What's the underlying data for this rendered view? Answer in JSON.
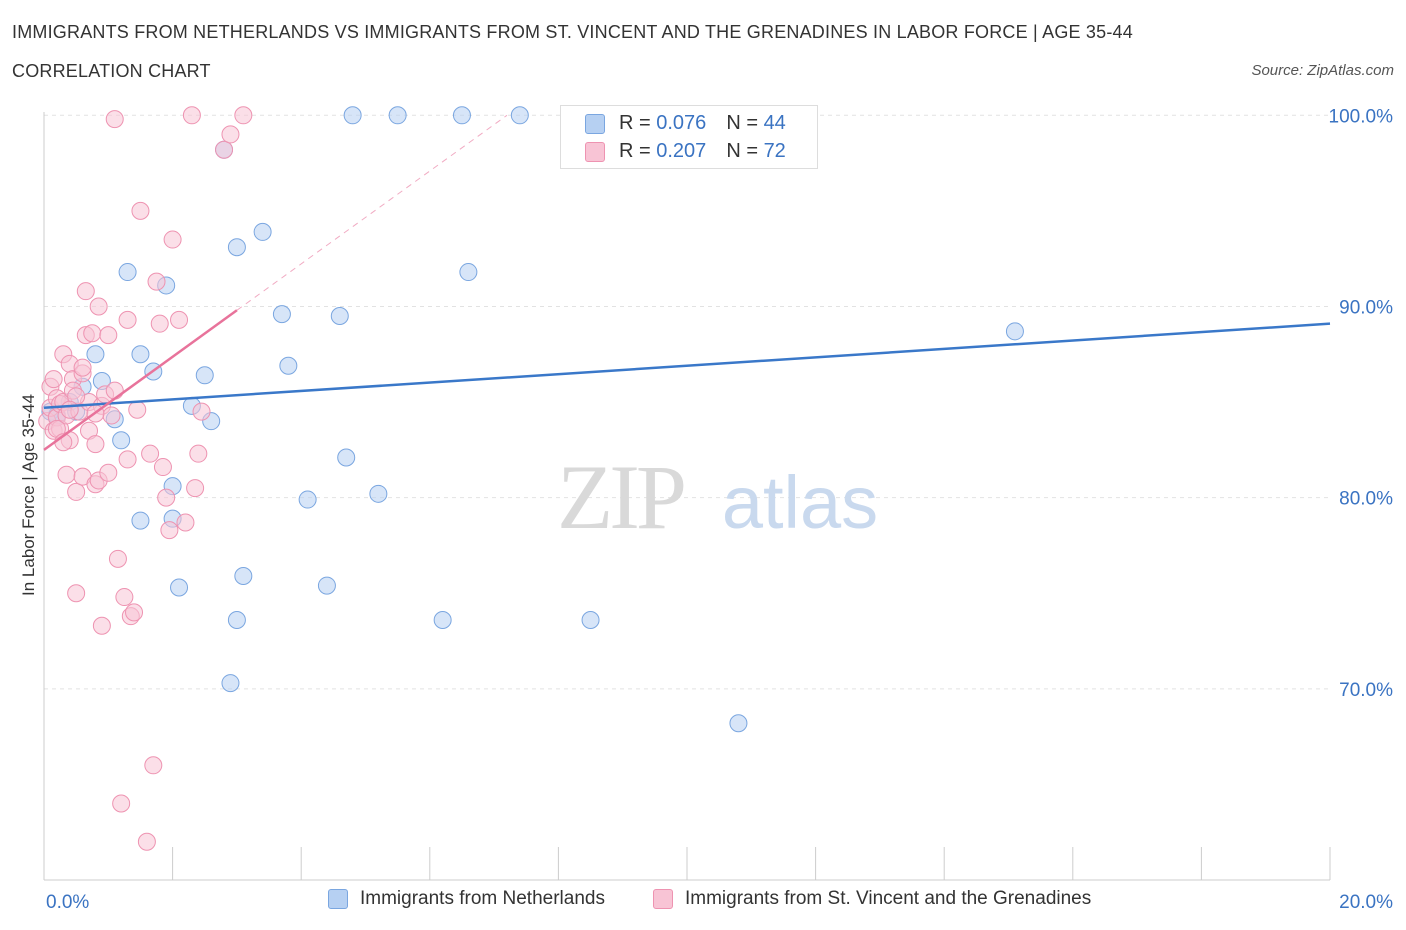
{
  "header": {
    "title": "IMMIGRANTS FROM NETHERLANDS VS IMMIGRANTS FROM ST. VINCENT AND THE GRENADINES IN LABOR FORCE | AGE 35-44",
    "subtitle": "CORRELATION CHART",
    "source": "Source: ZipAtlas.com"
  },
  "watermark": {
    "zip": "ZIP",
    "atlas": "atlas"
  },
  "stat_legend": {
    "rows": [
      {
        "r_label": "R =",
        "r_value": "0.076",
        "n_label": "N =",
        "n_value": "44",
        "color": "#b6d0f2",
        "border": "#7aa6e0"
      },
      {
        "r_label": "R =",
        "r_value": "0.207",
        "n_label": "N =",
        "n_value": "72",
        "color": "#f8c4d5",
        "border": "#ee93b1"
      }
    ]
  },
  "chart_data": {
    "type": "scatter",
    "title": "IMMIGRANTS FROM NETHERLANDS VS IMMIGRANTS FROM ST. VINCENT AND THE GRENADINES IN LABOR FORCE | AGE 35-44",
    "xlabel": "",
    "ylabel": "In Labor Force | Age 35-44",
    "xlim": [
      0,
      20
    ],
    "ylim": [
      60,
      100.8
    ],
    "x_tick_labels": [
      {
        "value": 0,
        "label": "0.0%"
      },
      {
        "value": 20,
        "label": "20.0%"
      }
    ],
    "y_tick_labels": [
      {
        "value": 100,
        "label": "100.0%"
      },
      {
        "value": 90,
        "label": "90.0%"
      },
      {
        "value": 80,
        "label": "80.0%"
      },
      {
        "value": 70,
        "label": "70.0%"
      }
    ],
    "grid": true,
    "legend_position": "bottom",
    "series": [
      {
        "name": "Immigrants from Netherlands",
        "color": "#b6d0f2",
        "edge": "#7aa6e0",
        "trend_color": "#3a78c9",
        "trend": {
          "x0": 0.0,
          "y0": 84.7,
          "x1": 20.0,
          "y1": 89.1
        },
        "points": [
          [
            0.1,
            84.5
          ],
          [
            0.2,
            84.2
          ],
          [
            0.4,
            85.0
          ],
          [
            0.5,
            84.5
          ],
          [
            0.6,
            85.8
          ],
          [
            0.8,
            87.5
          ],
          [
            0.9,
            86.1
          ],
          [
            1.1,
            84.1
          ],
          [
            1.2,
            83.0
          ],
          [
            1.3,
            91.8
          ],
          [
            1.5,
            87.5
          ],
          [
            1.5,
            78.8
          ],
          [
            1.7,
            86.6
          ],
          [
            1.9,
            91.1
          ],
          [
            2.0,
            80.6
          ],
          [
            2.0,
            78.9
          ],
          [
            2.1,
            75.3
          ],
          [
            2.3,
            84.8
          ],
          [
            2.5,
            86.4
          ],
          [
            2.6,
            84.0
          ],
          [
            2.8,
            98.2
          ],
          [
            2.9,
            70.3
          ],
          [
            3.0,
            93.1
          ],
          [
            3.0,
            73.6
          ],
          [
            3.1,
            75.9
          ],
          [
            3.4,
            93.9
          ],
          [
            3.7,
            89.6
          ],
          [
            3.8,
            86.9
          ],
          [
            4.1,
            79.9
          ],
          [
            4.4,
            75.4
          ],
          [
            4.6,
            89.5
          ],
          [
            4.7,
            82.1
          ],
          [
            4.8,
            100.0
          ],
          [
            5.2,
            80.2
          ],
          [
            5.5,
            100.0
          ],
          [
            6.2,
            73.6
          ],
          [
            6.5,
            100.0
          ],
          [
            6.6,
            91.8
          ],
          [
            7.4,
            100.0
          ],
          [
            8.5,
            73.6
          ],
          [
            8.9,
            100.0
          ],
          [
            10.8,
            68.2
          ],
          [
            15.1,
            88.7
          ],
          [
            0.2,
            84.3
          ]
        ]
      },
      {
        "name": "Immigrants from St. Vincent and the Grenadines",
        "color": "#f8c4d5",
        "edge": "#ee93b1",
        "trend_color": "#e8739b",
        "trend": {
          "x0": 0.0,
          "y0": 82.5,
          "x1": 3.0,
          "y1": 89.8
        },
        "trend_dashed": {
          "x0": 3.0,
          "y0": 89.8,
          "x1": 7.2,
          "y1": 100.0
        },
        "points": [
          [
            0.05,
            84.0
          ],
          [
            0.1,
            84.7
          ],
          [
            0.1,
            85.8
          ],
          [
            0.15,
            83.5
          ],
          [
            0.15,
            86.2
          ],
          [
            0.2,
            84.2
          ],
          [
            0.2,
            85.2
          ],
          [
            0.25,
            84.9
          ],
          [
            0.25,
            83.6
          ],
          [
            0.3,
            85.0
          ],
          [
            0.3,
            87.5
          ],
          [
            0.35,
            81.2
          ],
          [
            0.35,
            84.3
          ],
          [
            0.4,
            87.0
          ],
          [
            0.4,
            83.0
          ],
          [
            0.45,
            86.2
          ],
          [
            0.45,
            85.6
          ],
          [
            0.5,
            75.0
          ],
          [
            0.5,
            80.3
          ],
          [
            0.55,
            84.5
          ],
          [
            0.6,
            81.1
          ],
          [
            0.6,
            86.5
          ],
          [
            0.65,
            90.8
          ],
          [
            0.65,
            88.5
          ],
          [
            0.7,
            85.0
          ],
          [
            0.7,
            83.5
          ],
          [
            0.75,
            88.6
          ],
          [
            0.8,
            80.7
          ],
          [
            0.8,
            82.8
          ],
          [
            0.85,
            80.9
          ],
          [
            0.85,
            90.0
          ],
          [
            0.9,
            73.3
          ],
          [
            0.9,
            84.8
          ],
          [
            0.95,
            85.4
          ],
          [
            1.0,
            88.5
          ],
          [
            1.0,
            81.3
          ],
          [
            1.05,
            84.3
          ],
          [
            1.1,
            99.8
          ],
          [
            1.15,
            76.8
          ],
          [
            1.2,
            64.0
          ],
          [
            1.25,
            74.8
          ],
          [
            1.3,
            89.3
          ],
          [
            1.3,
            82.0
          ],
          [
            1.35,
            73.8
          ],
          [
            1.4,
            74.0
          ],
          [
            1.45,
            84.6
          ],
          [
            1.5,
            95.0
          ],
          [
            1.6,
            62.0
          ],
          [
            1.65,
            82.3
          ],
          [
            1.7,
            66.0
          ],
          [
            1.75,
            91.3
          ],
          [
            1.8,
            89.1
          ],
          [
            1.85,
            81.6
          ],
          [
            1.9,
            80.0
          ],
          [
            1.95,
            78.3
          ],
          [
            2.0,
            93.5
          ],
          [
            2.1,
            89.3
          ],
          [
            2.2,
            78.7
          ],
          [
            2.3,
            100.0
          ],
          [
            2.35,
            80.5
          ],
          [
            2.4,
            82.3
          ],
          [
            2.45,
            84.5
          ],
          [
            2.8,
            98.2
          ],
          [
            2.9,
            99.0
          ],
          [
            3.1,
            100.0
          ],
          [
            0.2,
            83.6
          ],
          [
            0.3,
            82.9
          ],
          [
            0.5,
            85.3
          ],
          [
            0.6,
            86.8
          ],
          [
            0.8,
            84.4
          ],
          [
            1.1,
            85.6
          ],
          [
            0.4,
            84.6
          ]
        ]
      }
    ]
  }
}
